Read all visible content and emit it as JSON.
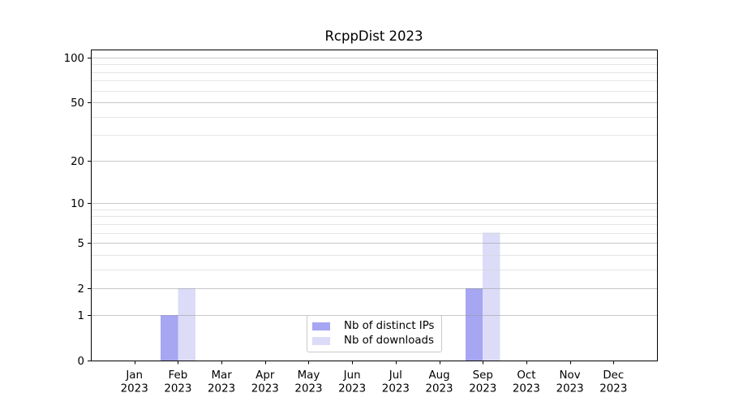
{
  "chart_data": {
    "type": "bar",
    "title": "RcppDist 2023",
    "categories": [
      "Jan 2023",
      "Feb 2023",
      "Mar 2023",
      "Apr 2023",
      "May 2023",
      "Jun 2023",
      "Jul 2023",
      "Aug 2023",
      "Sep 2023",
      "Oct 2023",
      "Nov 2023",
      "Dec 2023"
    ],
    "series": [
      {
        "name": "Nb of distinct IPs",
        "color": "#a6a6f2",
        "values": [
          0,
          1,
          0,
          0,
          0,
          0,
          0,
          0,
          2,
          0,
          0,
          0
        ]
      },
      {
        "name": "Nb of downloads",
        "color": "#dcdcf8",
        "values": [
          0,
          2,
          0,
          0,
          0,
          0,
          0,
          0,
          6,
          0,
          0,
          0
        ]
      }
    ],
    "xlabel": "",
    "ylabel": "",
    "y_scale": "log1p",
    "y_ticks": [
      0,
      1,
      2,
      5,
      10,
      20,
      50,
      100
    ],
    "y_tick_labels": [
      "0",
      "1",
      "2",
      "5",
      "10",
      "20",
      "50",
      "100"
    ],
    "y_minor_ticks": [
      3,
      4,
      6,
      7,
      8,
      9,
      30,
      40,
      60,
      70,
      80,
      90
    ],
    "ylim": [
      0,
      113.3
    ],
    "grid": true,
    "bar_width_fraction": 0.4,
    "legend_position": "lower center inside",
    "colors": {
      "frame": "#000000",
      "major_grid": "rgba(150,150,150,0.52)",
      "minor_grid": "rgba(212,212,212,0.6)",
      "text": "#000000"
    }
  }
}
